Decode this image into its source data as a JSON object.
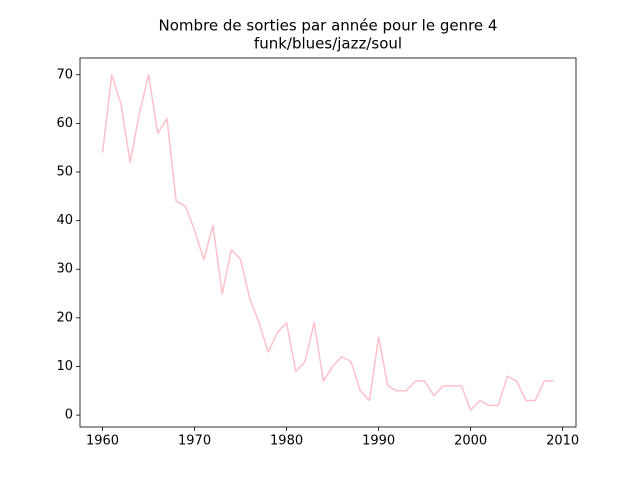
{
  "chart_data": {
    "type": "line",
    "title": [
      "Nombre de sorties par année pour le genre 4",
      "funk/blues/jazz/soul"
    ],
    "x": [
      1960,
      1961,
      1962,
      1963,
      1964,
      1965,
      1966,
      1967,
      1968,
      1969,
      1970,
      1971,
      1972,
      1973,
      1974,
      1975,
      1976,
      1977,
      1978,
      1979,
      1980,
      1981,
      1982,
      1983,
      1984,
      1985,
      1986,
      1987,
      1988,
      1989,
      1990,
      1991,
      1992,
      1993,
      1994,
      1995,
      1996,
      1997,
      1998,
      1999,
      2000,
      2001,
      2002,
      2003,
      2004,
      2005,
      2006,
      2007,
      2008,
      2009
    ],
    "values": [
      54,
      70,
      64,
      52,
      62,
      70,
      58,
      61,
      44,
      43,
      38,
      32,
      39,
      25,
      34,
      32,
      24,
      19,
      13,
      17,
      19,
      9,
      11,
      19,
      7,
      10,
      12,
      11,
      5,
      3,
      16,
      6,
      5,
      5,
      7,
      7,
      4,
      6,
      6,
      6,
      1,
      3,
      2,
      2,
      8,
      7,
      3,
      3,
      7,
      7
    ],
    "color": "#ffc0cb",
    "xlim": [
      1957.55,
      2011.45
    ],
    "xticks": [
      1960,
      1970,
      1980,
      1990,
      2000,
      2010
    ],
    "ylim": [
      -2.45,
      73.45
    ],
    "yticks": [
      0,
      10,
      20,
      30,
      40,
      50,
      60,
      70
    ],
    "grid": false
  }
}
